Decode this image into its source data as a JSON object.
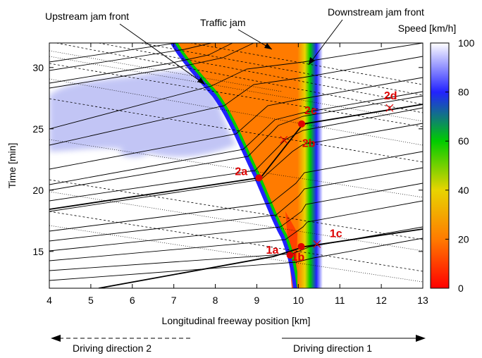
{
  "chart_data": {
    "type": "heatmap",
    "xlabel": "Longitudinal freeway position [km]",
    "ylabel": "Time [min]",
    "xlim": [
      4,
      13
    ],
    "ylim": [
      12,
      32
    ],
    "x_ticks": [
      "4",
      "5",
      "6",
      "7",
      "8",
      "9",
      "10",
      "11",
      "12",
      "13"
    ],
    "y_ticks": [
      "15",
      "20",
      "25",
      "30"
    ],
    "colorbar": {
      "label": "Speed [km/h]",
      "range": [
        0,
        100
      ],
      "ticks": [
        "0",
        "20",
        "40",
        "60",
        "80",
        "100"
      ],
      "colors": [
        "#ff0000",
        "#ff7b00",
        "#e8d400",
        "#00cc00",
        "#2222ff",
        "#ffffff"
      ]
    },
    "annotations": {
      "upstream": "Upstream jam front",
      "jam": "Traffic jam",
      "downstream": "Downstream jam front"
    },
    "points": [
      {
        "label": "1a",
        "x": 9.8,
        "y": 14.7,
        "marker": "dot"
      },
      {
        "label": "1b",
        "x": 10.07,
        "y": 15.4,
        "marker": "dot"
      },
      {
        "label": "1c",
        "x": 10.45,
        "y": 15.6,
        "marker": "cross"
      },
      {
        "label": "2a",
        "x": 9.05,
        "y": 21.0,
        "marker": "dot"
      },
      {
        "label": "2b",
        "x": 9.65,
        "y": 24.1,
        "marker": "cross"
      },
      {
        "label": "2c",
        "x": 10.08,
        "y": 25.4,
        "marker": "dot"
      },
      {
        "label": "2d",
        "x": 12.2,
        "y": 26.7,
        "marker": "cross"
      }
    ],
    "legend_directions": {
      "dir2": "Driving direction 2",
      "dir1": "Driving direction 1"
    },
    "point_color": "#dd0000",
    "free_flow_patches_color": "#b8bcf4"
  }
}
